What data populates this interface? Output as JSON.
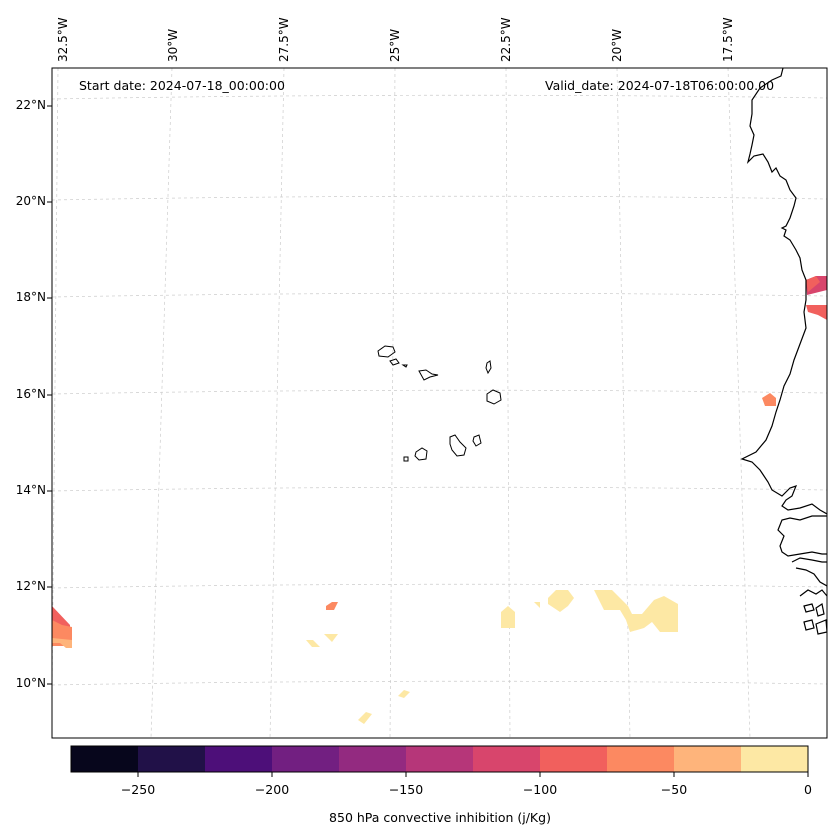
{
  "map": {
    "start_date": "Start date: 2024-07-18_00:00:00",
    "valid_date": "Valid_date: 2024-07-18T06:00:00.00",
    "lon_labels": [
      "32.5°W",
      "30°W",
      "27.5°W",
      "25°W",
      "22.5°W",
      "20°W",
      "17.5°W"
    ],
    "lat_labels": [
      "22°N",
      "20°N",
      "18°N",
      "16°N",
      "14°N",
      "12°N",
      "10°N"
    ],
    "gridlines": true,
    "coastline_color": "#000000",
    "gridline_color": "#cccccc"
  },
  "colorbar": {
    "label": "850 hPa convective inhibition (j/Kg)",
    "ticks": [
      "−250",
      "−200",
      "−150",
      "−100",
      "−50",
      "0"
    ],
    "tick_values": [
      -250,
      -200,
      -150,
      -100,
      -50,
      0
    ],
    "bounds": [
      -275,
      -250,
      -225,
      -200,
      -175,
      -150,
      -125,
      -100,
      -75,
      -50,
      -25,
      0
    ],
    "colors": [
      "#07061c",
      "#211148",
      "#4d0f79",
      "#721f81",
      "#932a80",
      "#b63679",
      "#d8456c",
      "#f1605d",
      "#fc8961",
      "#feb47b",
      "#fde8a4"
    ]
  },
  "chart_data": {
    "type": "map",
    "variable": "850 hPa convective inhibition (j/Kg)",
    "extent_lon": [
      -32.5,
      -16.5
    ],
    "extent_lat": [
      9,
      22.5
    ],
    "shaded_regions": [
      {
        "area": "coast near 18°N",
        "value_range": [
          -125,
          -100
        ]
      },
      {
        "area": "coast near 16°N",
        "value_range": [
          -75,
          -50
        ]
      },
      {
        "area": "far west near 11°N",
        "value_range": [
          -75,
          -25
        ]
      },
      {
        "area": "ocean near 11°N",
        "value_range": [
          -25,
          0
        ]
      }
    ]
  }
}
